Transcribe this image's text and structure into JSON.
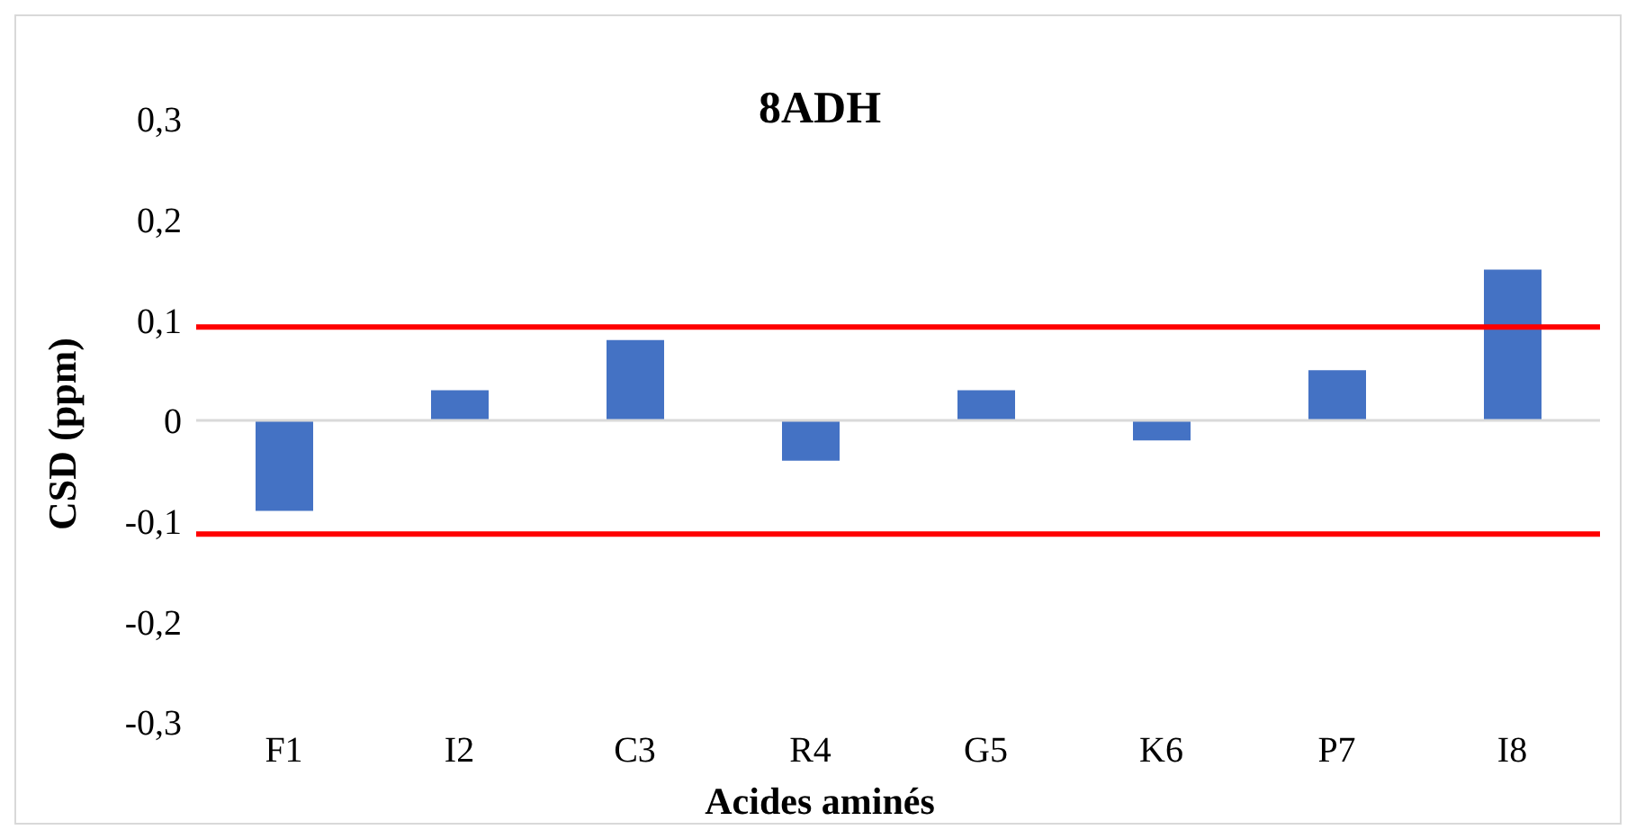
{
  "chart_data": {
    "type": "bar",
    "title": "8ADH",
    "xlabel": "Acides aminés",
    "ylabel": "CSD (ppm)",
    "categories": [
      "F1",
      "I2",
      "C3",
      "R4",
      "G5",
      "K6",
      "P7",
      "I8"
    ],
    "values": [
      -0.09,
      0.03,
      0.08,
      -0.04,
      0.03,
      -0.02,
      0.05,
      0.15
    ],
    "color": "#4472c4",
    "ylim": [
      -0.3,
      0.3
    ],
    "yticks": [
      {
        "value": -0.3,
        "label": "-0,3"
      },
      {
        "value": -0.2,
        "label": "-0,2"
      },
      {
        "value": -0.1,
        "label": "-0,1"
      },
      {
        "value": 0,
        "label": "0"
      },
      {
        "value": 0.1,
        "label": "0,1"
      },
      {
        "value": 0.2,
        "label": "0,2"
      },
      {
        "value": 0.3,
        "label": "0,3"
      }
    ],
    "ref_lines": [
      {
        "axis": "y",
        "value": 0.093,
        "label": null,
        "color": "#ff0000"
      },
      {
        "axis": "y",
        "value": -0.113,
        "label": null,
        "color": "#ff0000"
      }
    ],
    "grid": false,
    "legend": false
  }
}
